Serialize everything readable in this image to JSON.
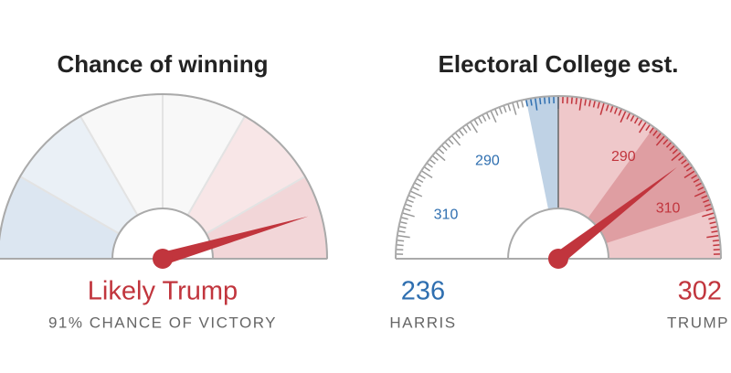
{
  "chart_data": [
    {
      "type": "gauge",
      "title": "Chance of winning",
      "value": 91,
      "xlim": [
        0,
        100
      ],
      "label": "Likely Trump",
      "sublabel": "91% CHANCE OF VICTORY",
      "color": "#c1353d",
      "segment_colors": [
        "#dce6f1",
        "#eaf0f6",
        "#f8f8f8",
        "#f8f8f8",
        "#f8e6e7",
        "#f2d6d8"
      ]
    },
    {
      "type": "gauge",
      "title": "Electoral College est.",
      "value": 302,
      "xlim": [
        215,
        325
      ],
      "xticks": [
        {
          "value": 228,
          "label": "310"
        },
        {
          "value": 248,
          "label": "290"
        },
        290,
        310
      ],
      "color": "#c1353d",
      "ranges": [
        {
          "from": 263,
          "to": 270,
          "color": "#bfd2e5"
        },
        {
          "from": 270,
          "to": 325,
          "color": "#efc8ca"
        },
        {
          "from": 292,
          "to": 314,
          "color": "#df9ea2"
        }
      ],
      "candidates": [
        {
          "name": "HARRIS",
          "value": 236,
          "color": "#2f6fb0"
        },
        {
          "name": "TRUMP",
          "value": 302,
          "color": "#c1353d"
        }
      ]
    }
  ]
}
